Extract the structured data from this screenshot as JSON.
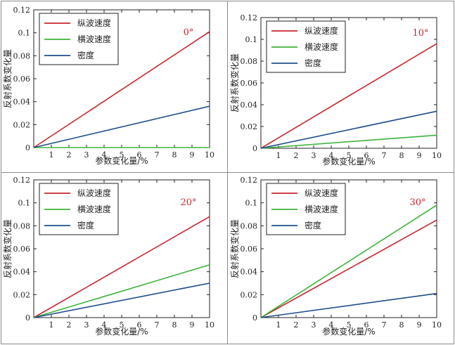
{
  "chart_data": [
    {
      "type": "line",
      "annotation": "0°",
      "x": [
        0,
        10
      ],
      "xlabel": "参数变化量/%",
      "ylabel": "反射系数变化量",
      "xlim": [
        0,
        10
      ],
      "ylim": [
        0,
        0.12
      ],
      "xticks": [
        "1",
        "2",
        "3",
        "4",
        "5",
        "6",
        "7",
        "8",
        "9",
        "10"
      ],
      "yticks": [
        "0",
        "0.02",
        "0.04",
        "0.06",
        "0.08",
        "0.1",
        "0.12"
      ],
      "legend": "top-left",
      "grid": false,
      "series": [
        {
          "name": "纵波速度",
          "color": "#c8262e",
          "values": [
            0,
            0.101
          ]
        },
        {
          "name": "横波速度",
          "color": "#3db33a",
          "values": [
            0,
            0
          ]
        },
        {
          "name": "密度",
          "color": "#1f4e8c",
          "values": [
            0,
            0.036
          ]
        }
      ]
    },
    {
      "type": "line",
      "annotation": "10°",
      "x": [
        0,
        10
      ],
      "xlabel": "参数变化量/%",
      "ylabel": "反射系数变化量",
      "xlim": [
        0,
        10
      ],
      "ylim": [
        0,
        0.12
      ],
      "xticks": [
        "1",
        "2",
        "3",
        "4",
        "5",
        "6",
        "7",
        "8",
        "9",
        "10"
      ],
      "yticks": [
        "0",
        "0.02",
        "0.04",
        "0.06",
        "0.08",
        "0.1",
        "0.12"
      ],
      "legend": "top-left",
      "grid": false,
      "series": [
        {
          "name": "纵波速度",
          "color": "#c8262e",
          "values": [
            0,
            0.096
          ]
        },
        {
          "name": "横波速度",
          "color": "#3db33a",
          "values": [
            0,
            0.012
          ]
        },
        {
          "name": "密度",
          "color": "#1f4e8c",
          "values": [
            0,
            0.034
          ]
        }
      ]
    },
    {
      "type": "line",
      "annotation": "20°",
      "x": [
        0,
        10
      ],
      "xlabel": "参数变化量/%",
      "ylabel": "反射系数变化量",
      "xlim": [
        0,
        10
      ],
      "ylim": [
        0,
        0.12
      ],
      "xticks": [
        "1",
        "2",
        "3",
        "4",
        "5",
        "6",
        "7",
        "8",
        "9",
        "10"
      ],
      "yticks": [
        "0",
        "0.02",
        "0.04",
        "0.06",
        "0.08",
        "0.1",
        "0.12"
      ],
      "legend": "top-left",
      "grid": false,
      "series": [
        {
          "name": "纵波速度",
          "color": "#c8262e",
          "values": [
            0,
            0.088
          ]
        },
        {
          "name": "横波速度",
          "color": "#3db33a",
          "values": [
            0,
            0.046
          ]
        },
        {
          "name": "密度",
          "color": "#1f4e8c",
          "values": [
            0,
            0.03
          ]
        }
      ]
    },
    {
      "type": "line",
      "annotation": "30°",
      "x": [
        0,
        10
      ],
      "xlabel": "参数变化量/%",
      "ylabel": "反射系数变化量",
      "xlim": [
        0,
        10
      ],
      "ylim": [
        0,
        0.12
      ],
      "xticks": [
        "1",
        "2",
        "3",
        "4",
        "5",
        "6",
        "7",
        "8",
        "9",
        "10"
      ],
      "yticks": [
        "0",
        "0.02",
        "0.04",
        "0.06",
        "0.08",
        "0.1",
        "0.12"
      ],
      "legend": "top-left",
      "grid": false,
      "series": [
        {
          "name": "纵波速度",
          "color": "#c8262e",
          "values": [
            0,
            0.085
          ]
        },
        {
          "name": "横波速度",
          "color": "#3db33a",
          "values": [
            0,
            0.098
          ]
        },
        {
          "name": "密度",
          "color": "#1f4e8c",
          "values": [
            0,
            0.021
          ]
        }
      ]
    }
  ]
}
